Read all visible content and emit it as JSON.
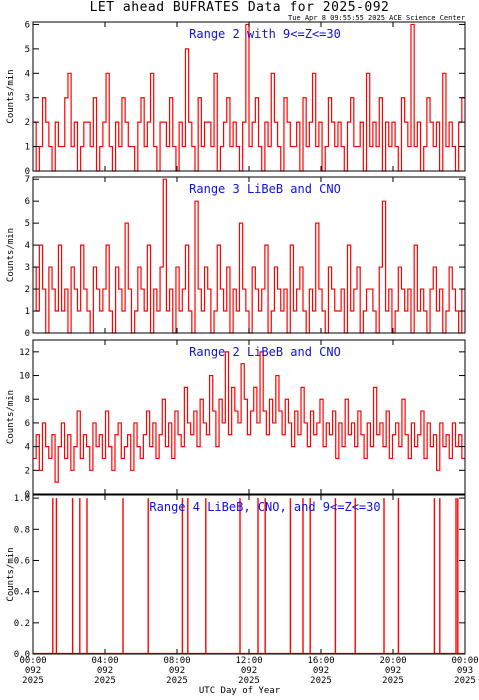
{
  "title": "LET ahead BUFRATES Data for 2025-092",
  "timestamp": "Tue Apr  8 09:55:55 2025 ACE Science Center",
  "xlabel": "UTC Day of Year",
  "colors": {
    "series": "#ff0000",
    "panel_title": "#1010e0",
    "axes": "#000000"
  },
  "chart_data": [
    {
      "type": "line",
      "title": "Range 2 with 9<=Z<=30",
      "ylabel": "Counts/min",
      "ylim": [
        0,
        6.1
      ],
      "yticks": [
        0,
        1,
        2,
        3,
        4,
        5,
        6
      ],
      "yticklabels": [
        "0",
        "1",
        "2",
        "3",
        "4",
        "5",
        "6"
      ],
      "series": [
        {
          "values": [
            2,
            0,
            1,
            3,
            2,
            1,
            0,
            2,
            1,
            1,
            3,
            4,
            1,
            2,
            0,
            1,
            2,
            2,
            1,
            3,
            0,
            1,
            2,
            4,
            1,
            0,
            2,
            1,
            3,
            2,
            1,
            1,
            0,
            2,
            3,
            1,
            2,
            4,
            1,
            0,
            2,
            2,
            1,
            3,
            1,
            0,
            2,
            1,
            5,
            2,
            1,
            0,
            3,
            1,
            2,
            2,
            1,
            4,
            0,
            1,
            2,
            3,
            1,
            2,
            1,
            0,
            2,
            6,
            1,
            2,
            3,
            1,
            0,
            2,
            1,
            4,
            2,
            1,
            0,
            3,
            2,
            1,
            1,
            2,
            0,
            3,
            1,
            2,
            4,
            1,
            2,
            0,
            1,
            3,
            2,
            1,
            2,
            1,
            0,
            2,
            3,
            1,
            1,
            2,
            0,
            4,
            1,
            2,
            1,
            3,
            0,
            2,
            1,
            2,
            1,
            0,
            3,
            2,
            1,
            6,
            1,
            2,
            0,
            1,
            3,
            2,
            1,
            2,
            0,
            4,
            1,
            2,
            1,
            0,
            2,
            3
          ]
        }
      ]
    },
    {
      "type": "line",
      "title": "Range 3 LiBeB and CNO",
      "ylabel": "Counts/min",
      "ylim": [
        0,
        7.1
      ],
      "yticks": [
        0,
        1,
        2,
        3,
        4,
        5,
        6,
        7
      ],
      "yticklabels": [
        "0",
        "1",
        "2",
        "3",
        "4",
        "5",
        "6",
        "7"
      ],
      "series": [
        {
          "values": [
            3,
            1,
            4,
            2,
            0,
            3,
            2,
            1,
            4,
            1,
            2,
            0,
            3,
            2,
            1,
            4,
            2,
            1,
            0,
            3,
            2,
            1,
            2,
            4,
            1,
            0,
            3,
            2,
            1,
            5,
            2,
            0,
            1,
            3,
            2,
            1,
            4,
            0,
            2,
            1,
            3,
            7,
            1,
            2,
            0,
            3,
            1,
            2,
            4,
            1,
            0,
            6,
            2,
            1,
            3,
            2,
            0,
            1,
            4,
            2,
            1,
            3,
            0,
            2,
            1,
            5,
            2,
            1,
            0,
            3,
            2,
            1,
            2,
            4,
            0,
            1,
            3,
            2,
            1,
            2,
            0,
            4,
            1,
            2,
            3,
            1,
            0,
            2,
            1,
            5,
            2,
            1,
            0,
            3,
            2,
            1,
            1,
            2,
            0,
            4,
            1,
            2,
            3,
            0,
            1,
            2,
            2,
            1,
            0,
            3,
            6,
            1,
            2,
            0,
            1,
            3,
            2,
            1,
            2,
            0,
            4,
            1,
            2,
            1,
            0,
            2,
            3,
            1,
            2,
            0,
            1,
            3,
            2,
            1,
            0,
            2
          ]
        }
      ]
    },
    {
      "type": "line",
      "title": "Range 2 LiBeB and CNO",
      "ylabel": "Counts/min",
      "ylim": [
        0,
        13
      ],
      "yticks": [
        0,
        2,
        4,
        6,
        8,
        10,
        12
      ],
      "yticklabels": [
        "0",
        "2",
        "4",
        "6",
        "8",
        "10",
        "12"
      ],
      "series": [
        {
          "values": [
            3,
            5,
            2,
            6,
            4,
            3,
            5,
            1,
            4,
            6,
            3,
            5,
            2,
            4,
            7,
            3,
            5,
            4,
            2,
            6,
            4,
            5,
            3,
            7,
            4,
            2,
            5,
            6,
            3,
            4,
            5,
            2,
            6,
            4,
            3,
            5,
            7,
            4,
            6,
            3,
            5,
            8,
            4,
            6,
            3,
            7,
            5,
            4,
            9,
            6,
            5,
            7,
            4,
            8,
            6,
            5,
            10,
            7,
            4,
            8,
            6,
            12,
            5,
            9,
            7,
            6,
            11,
            8,
            5,
            7,
            9,
            6,
            12,
            7,
            5,
            8,
            6,
            10,
            7,
            5,
            8,
            6,
            4,
            7,
            5,
            9,
            6,
            4,
            7,
            5,
            6,
            8,
            4,
            6,
            5,
            7,
            3,
            6,
            4,
            8,
            5,
            6,
            4,
            7,
            5,
            3,
            6,
            4,
            9,
            5,
            6,
            4,
            7,
            3,
            5,
            6,
            4,
            8,
            5,
            3,
            6,
            4,
            5,
            7,
            3,
            6,
            4,
            5,
            2,
            6,
            4,
            5,
            3,
            6,
            4,
            5,
            3
          ]
        }
      ]
    },
    {
      "type": "line",
      "title": "Range 4 LiBeB, CNO, and 9<=Z<=30",
      "ylabel": "Counts/min",
      "ylim": [
        0,
        1.02
      ],
      "yticks": [
        0,
        0.2,
        0.4,
        0.6,
        0.8,
        1.0
      ],
      "yticklabels": [
        "0.0",
        "0.2",
        "0.4",
        "0.6",
        "0.8",
        "1.0"
      ],
      "spike_times_hours": [
        1.1,
        1.3,
        2.2,
        2.6,
        3.0,
        5.0,
        6.4,
        8.3,
        8.6,
        9.6,
        11.5,
        12.5,
        12.9,
        14.3,
        15.0,
        15.4,
        16.8,
        17.9,
        19.5,
        20.3,
        22.3,
        22.6,
        23.5,
        23.6
      ]
    }
  ],
  "xaxis": {
    "range_hours": [
      0,
      24
    ],
    "tick_hours": [
      0,
      4,
      8,
      12,
      16,
      20,
      24
    ],
    "ticklabels": [
      [
        "00:00",
        "092",
        "2025"
      ],
      [
        "04:00",
        "092",
        "2025"
      ],
      [
        "08:00",
        "092",
        "2025"
      ],
      [
        "12:00",
        "092",
        "2025"
      ],
      [
        "16:00",
        "092",
        "2025"
      ],
      [
        "20:00",
        "092",
        "2025"
      ],
      [
        "00:00",
        "093",
        "2025"
      ]
    ]
  }
}
